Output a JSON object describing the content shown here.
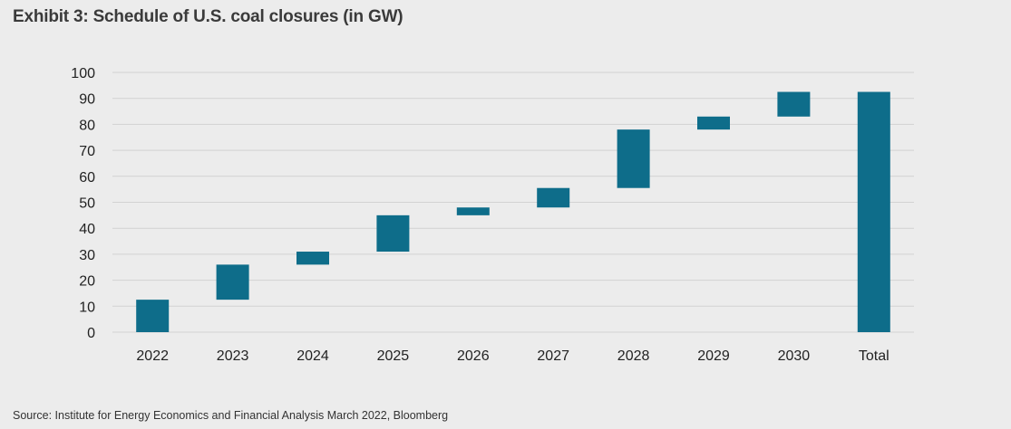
{
  "header": {
    "title": "Exhibit 3: Schedule of U.S. coal closures (in GW)"
  },
  "footer": {
    "source": "Source: Institute for Energy Economics and Financial Analysis March 2022, Bloomberg"
  },
  "colors": {
    "bar": "#0e6d8a",
    "grid": "#d2d2d2",
    "background": "#ececec"
  },
  "chart_data": {
    "type": "bar",
    "subtype": "waterfall",
    "categories": [
      "2022",
      "2023",
      "2024",
      "2025",
      "2026",
      "2027",
      "2028",
      "2029",
      "2030",
      "Total"
    ],
    "bars": [
      {
        "category": "2022",
        "start": 0,
        "end": 12.5
      },
      {
        "category": "2023",
        "start": 12.5,
        "end": 26
      },
      {
        "category": "2024",
        "start": 26,
        "end": 31
      },
      {
        "category": "2025",
        "start": 31,
        "end": 45
      },
      {
        "category": "2026",
        "start": 45,
        "end": 48
      },
      {
        "category": "2027",
        "start": 48,
        "end": 55.5
      },
      {
        "category": "2028",
        "start": 55.5,
        "end": 78
      },
      {
        "category": "2029",
        "start": 78,
        "end": 83
      },
      {
        "category": "2030",
        "start": 83,
        "end": 92.5
      },
      {
        "category": "Total",
        "start": 0,
        "end": 92.5
      }
    ],
    "ylim": [
      0,
      100
    ],
    "yticks": [
      "0",
      "10",
      "20",
      "30",
      "40",
      "50",
      "60",
      "70",
      "80",
      "90",
      "100"
    ],
    "grid": true,
    "legend": "none"
  }
}
